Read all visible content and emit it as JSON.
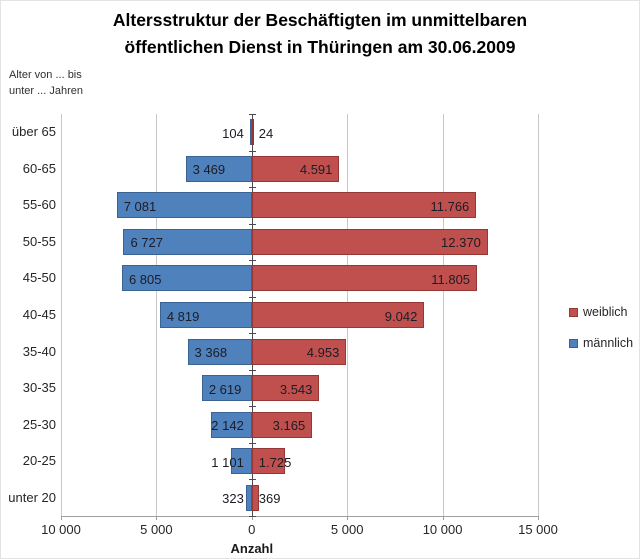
{
  "title": {
    "line1": "Altersstruktur der Beschäftigten im unmittelbaren",
    "line2": "öffentlichen Dienst in Thüringen am 30.06.2009"
  },
  "axis_note": {
    "line1": "Alter von  ... bis",
    "line2": "unter ... Jahren"
  },
  "chart_data": {
    "type": "bar",
    "orientation": "horizontal-pyramid",
    "title": "Altersstruktur der Beschäftigten im unmittelbaren öffentlichen Dienst in Thüringen am 30.06.2009",
    "xlabel": "Anzahl",
    "ylabel": "Alter von ... bis unter ... Jahren",
    "categories": [
      "über 65",
      "60-65",
      "55-60",
      "50-55",
      "45-50",
      "40-45",
      "35-40",
      "30-35",
      "25-30",
      "20-25",
      "unter 20"
    ],
    "series": [
      {
        "name": "männlich",
        "side": "left",
        "color": "#4f81bd",
        "border_color": "#3a6394",
        "values": [
          104,
          3469,
          7081,
          6727,
          6805,
          4819,
          3368,
          2619,
          2142,
          1101,
          323
        ],
        "labels": [
          "104",
          "3 469",
          "7 081",
          "6 727",
          "6 805",
          "4 819",
          "3 368",
          "2 619",
          "2 142",
          "1 101",
          "323"
        ]
      },
      {
        "name": "weiblich",
        "side": "right",
        "color": "#c0504d",
        "border_color": "#953735",
        "values": [
          24,
          4591,
          11766,
          12370,
          11805,
          9042,
          4953,
          3543,
          3165,
          1725,
          369
        ],
        "labels": [
          "24",
          "4.591",
          "11.766",
          "12.370",
          "11.805",
          "9.042",
          "4.953",
          "3.543",
          "3.165",
          "1.725",
          "369"
        ]
      }
    ],
    "xlim": [
      -10000,
      15000
    ],
    "x_ticks": [
      {
        "value": -10000,
        "label": "10 000"
      },
      {
        "value": -5000,
        "label": "5 000"
      },
      {
        "value": 0,
        "label": "0"
      },
      {
        "value": 5000,
        "label": "5 000"
      },
      {
        "value": 10000,
        "label": "10 000"
      },
      {
        "value": 15000,
        "label": "15 000"
      }
    ],
    "grid": true,
    "legend_position": "right",
    "legend": [
      {
        "label": "weiblich",
        "color": "#c0504d"
      },
      {
        "label": "männlich",
        "color": "#4f81bd"
      }
    ]
  },
  "colors": {
    "gridline": "#c9c9c9",
    "zero_axis": "#4a4a52",
    "x_axis": "#9e9e9e",
    "label_text": "#1c1c26"
  }
}
